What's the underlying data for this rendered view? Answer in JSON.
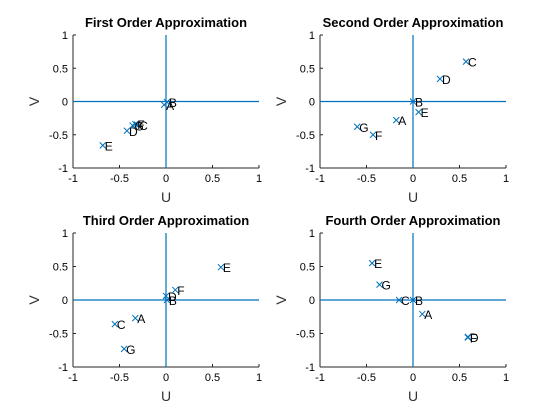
{
  "chart_data": [
    {
      "type": "scatter",
      "title": "First Order Approximation",
      "xlabel": "U",
      "ylabel": "V",
      "xlim": [
        -1,
        1
      ],
      "ylim": [
        -1,
        1
      ],
      "xticks": [
        "-1",
        "-0.5",
        "0",
        "0.5",
        "1"
      ],
      "yticks": [
        "-1",
        "-0.5",
        "0",
        "0.5",
        "1"
      ],
      "grid": false,
      "points": [
        {
          "label": "A",
          "x": -0.02,
          "y": -0.05
        },
        {
          "label": "B",
          "x": 0.01,
          "y": -0.01
        },
        {
          "label": "C",
          "x": -0.31,
          "y": -0.35
        },
        {
          "label": "D",
          "x": -0.42,
          "y": -0.44
        },
        {
          "label": "E",
          "x": -0.68,
          "y": -0.66
        },
        {
          "label": "F",
          "x": -0.33,
          "y": -0.34
        },
        {
          "label": "G",
          "x": -0.36,
          "y": -0.36
        }
      ]
    },
    {
      "type": "scatter",
      "title": "Second Order Approximation",
      "xlabel": "U",
      "ylabel": "V",
      "xlim": [
        -1,
        1
      ],
      "ylim": [
        -1,
        1
      ],
      "xticks": [
        "-1",
        "-0.5",
        "0",
        "0.5",
        "1"
      ],
      "yticks": [
        "-1",
        "-0.5",
        "0",
        "0.5",
        "1"
      ],
      "grid": false,
      "points": [
        {
          "label": "A",
          "x": -0.18,
          "y": -0.28
        },
        {
          "label": "B",
          "x": 0.0,
          "y": 0.0
        },
        {
          "label": "C",
          "x": 0.57,
          "y": 0.6
        },
        {
          "label": "D",
          "x": 0.29,
          "y": 0.34
        },
        {
          "label": "E",
          "x": 0.06,
          "y": -0.16
        },
        {
          "label": "F",
          "x": -0.43,
          "y": -0.5
        },
        {
          "label": "G",
          "x": -0.6,
          "y": -0.38
        }
      ]
    },
    {
      "type": "scatter",
      "title": "Third Order Approximation",
      "xlabel": "U",
      "ylabel": "V",
      "xlim": [
        -1,
        1
      ],
      "ylim": [
        -1,
        1
      ],
      "xticks": [
        "-1",
        "-0.5",
        "0",
        "0.5",
        "1"
      ],
      "yticks": [
        "-1",
        "-0.5",
        "0",
        "0.5",
        "1"
      ],
      "grid": false,
      "points": [
        {
          "label": "A",
          "x": -0.33,
          "y": -0.27
        },
        {
          "label": "B",
          "x": 0.01,
          "y": 0.0
        },
        {
          "label": "C",
          "x": -0.55,
          "y": -0.36
        },
        {
          "label": "D",
          "x": 0.0,
          "y": 0.06
        },
        {
          "label": "E",
          "x": 0.59,
          "y": 0.49
        },
        {
          "label": "F",
          "x": 0.1,
          "y": 0.15
        },
        {
          "label": "G",
          "x": -0.45,
          "y": -0.73
        }
      ]
    },
    {
      "type": "scatter",
      "title": "Fourth Order Approximation",
      "xlabel": "U",
      "ylabel": "V",
      "xlim": [
        -1,
        1
      ],
      "ylim": [
        -1,
        1
      ],
      "xticks": [
        "-1",
        "-0.5",
        "0",
        "0.5",
        "1"
      ],
      "yticks": [
        "-1",
        "-0.5",
        "0",
        "0.5",
        "1"
      ],
      "grid": false,
      "points": [
        {
          "label": "A",
          "x": 0.1,
          "y": -0.21
        },
        {
          "label": "B",
          "x": 0.0,
          "y": 0.0
        },
        {
          "label": "C",
          "x": -0.15,
          "y": 0.0
        },
        {
          "label": "D",
          "x": 0.59,
          "y": -0.55
        },
        {
          "label": "E",
          "x": -0.44,
          "y": 0.55
        },
        {
          "label": "F",
          "x": 0.59,
          "y": -0.56
        },
        {
          "label": "G",
          "x": -0.36,
          "y": 0.23
        }
      ]
    }
  ],
  "colors": {
    "axis": "#262626",
    "zero_line": "#0072bd",
    "marker": "#0072bd",
    "text": "#000000"
  }
}
